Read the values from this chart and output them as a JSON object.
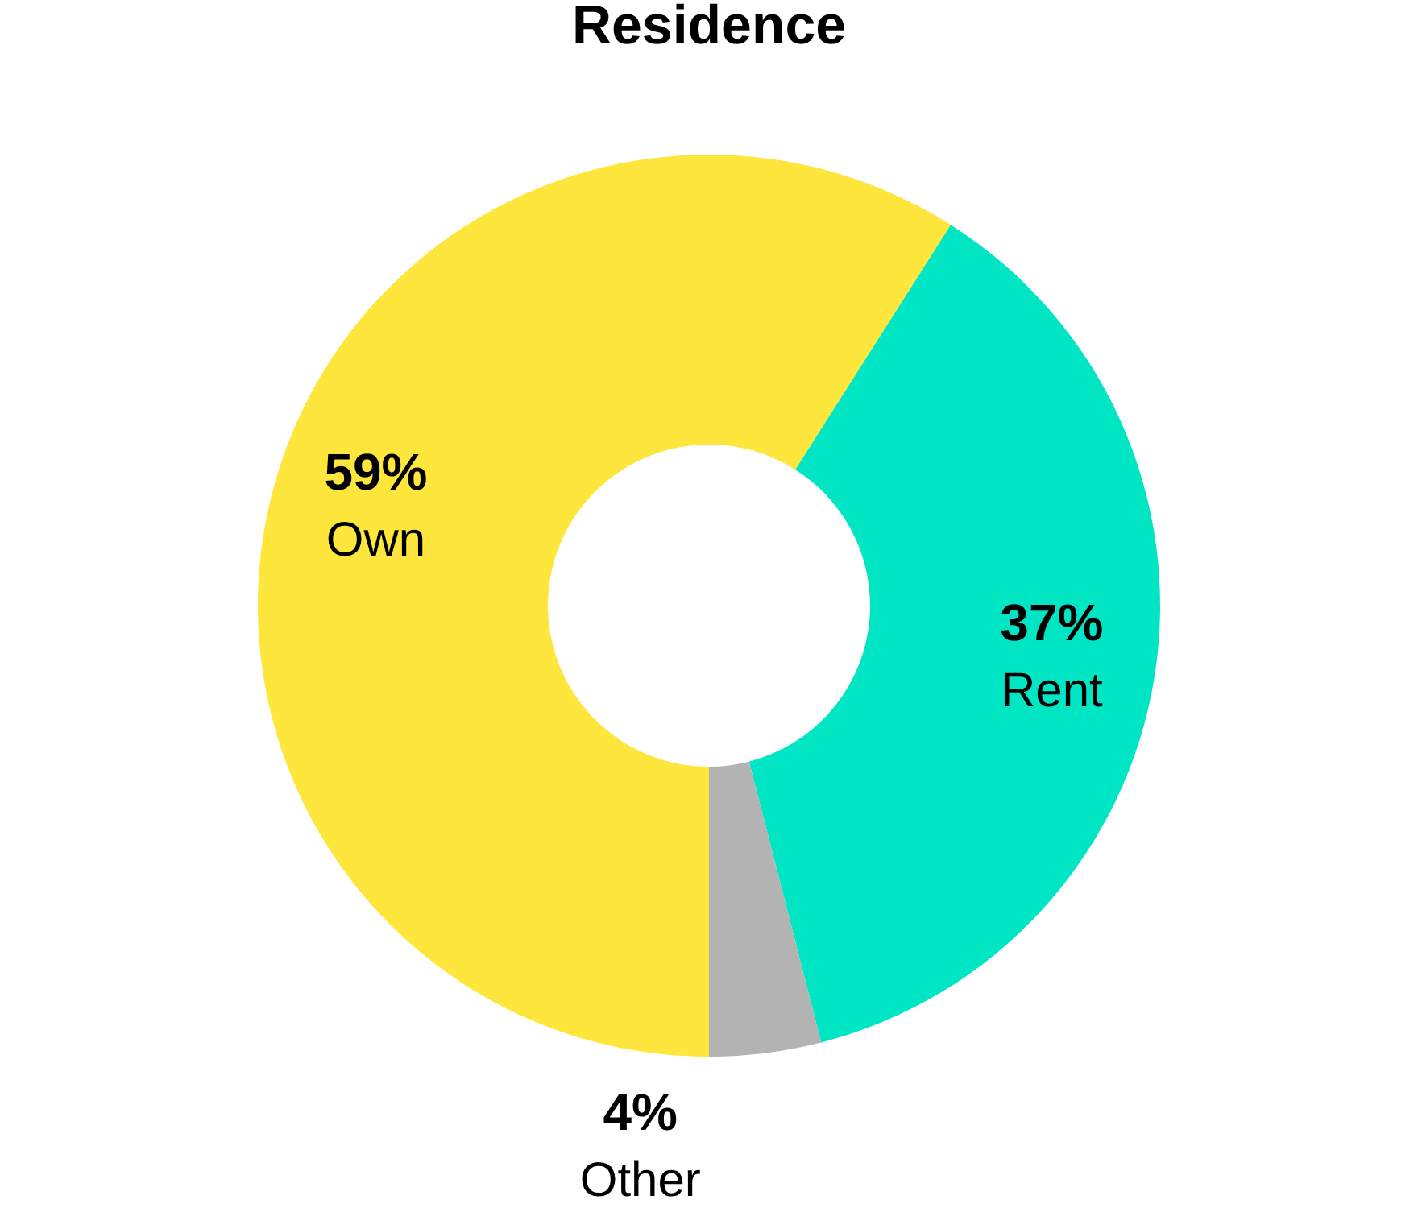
{
  "chart_data": {
    "type": "donut",
    "title": "Residence",
    "categories": [
      "Own",
      "Rent",
      "Other"
    ],
    "values": [
      59,
      37,
      4
    ],
    "colors": [
      "#fee63c",
      "#00e6c4",
      "#b3b3b3"
    ],
    "value_labels": [
      "59%",
      "37%",
      "4%"
    ],
    "legend": false
  }
}
